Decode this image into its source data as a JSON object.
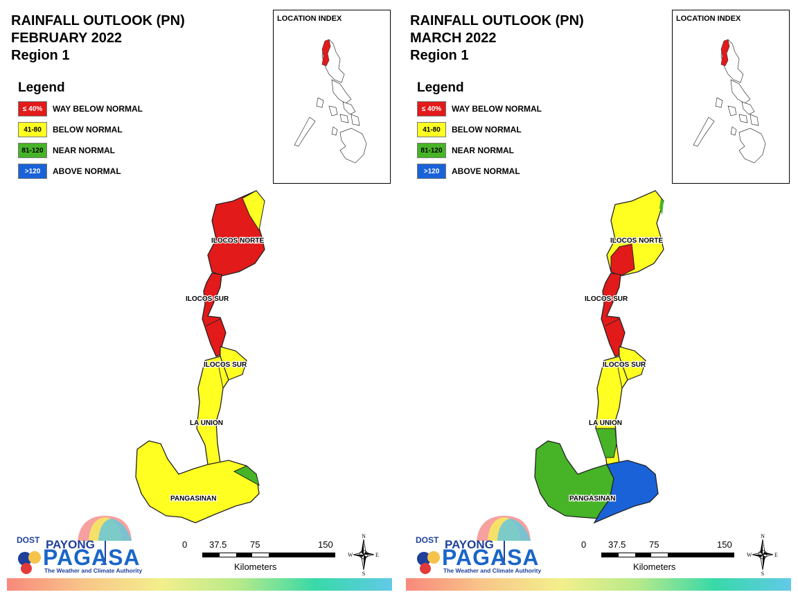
{
  "panels": [
    {
      "id": "february",
      "title": [
        "RAINFALL OUTLOOK (PN)",
        "FEBRUARY 2022",
        "Region 1"
      ],
      "location_index_title": "LOCATION INDEX",
      "province_labels": {
        "ilocos_norte": "ILOCOS NORTE",
        "ilocos_sur_north": "ILOCOS SUR",
        "ilocos_sur_south": "ILOCOS SUR",
        "la_union": "LA UNION",
        "pangasinan": "PANGASINAN"
      },
      "province_categories": {
        "ilocos_norte": "WAY BELOW NORMAL",
        "ilocos_norte_northeast": "BELOW NORMAL",
        "ilocos_sur": "WAY BELOW NORMAL",
        "ilocos_sur_south": "BELOW NORMAL",
        "la_union": "BELOW NORMAL",
        "pangasinan": "BELOW NORMAL",
        "pangasinan_east": "NEAR NORMAL"
      }
    },
    {
      "id": "march",
      "title": [
        "RAINFALL OUTLOOK (PN)",
        "MARCH 2022",
        "Region 1"
      ],
      "location_index_title": "LOCATION INDEX",
      "province_labels": {
        "ilocos_norte": "ILOCOS NORTE",
        "ilocos_sur_north": "ILOCOS SUR",
        "ilocos_sur_south": "ILOCOS SUR",
        "la_union": "LA UNION",
        "pangasinan": "PANGASINAN"
      },
      "province_categories": {
        "ilocos_norte": "BELOW NORMAL",
        "ilocos_norte_coast": "WAY BELOW NORMAL",
        "ilocos_sur": "WAY BELOW NORMAL",
        "ilocos_sur_south": "BELOW NORMAL",
        "la_union": "BELOW NORMAL",
        "la_union_south": "NEAR NORMAL",
        "pangasinan_west": "NEAR NORMAL",
        "pangasinan_east": "ABOVE NORMAL"
      }
    }
  ],
  "legend": {
    "title": "Legend",
    "items": [
      {
        "range": "≤ 40%",
        "label": "WAY BELOW NORMAL",
        "color": "#e21a1a"
      },
      {
        "range": "41-80",
        "label": "BELOW NORMAL",
        "color": "#ffff22"
      },
      {
        "range": "81-120",
        "label": "NEAR NORMAL",
        "color": "#46b426"
      },
      {
        "range": ">120",
        "label": "ABOVE NORMAL",
        "color": "#1a62d8"
      }
    ]
  },
  "scale": {
    "ticks": [
      "0",
      "37.5",
      "75",
      "150"
    ],
    "unit": "Kilometers"
  },
  "compass": {
    "n": "N",
    "s": "S",
    "e": "E",
    "w": "W"
  },
  "logo": {
    "dost": "DOST",
    "payong": "PAYONG",
    "pagasa": "PAGASA",
    "tagline": "The Weather and Climate Authority"
  }
}
